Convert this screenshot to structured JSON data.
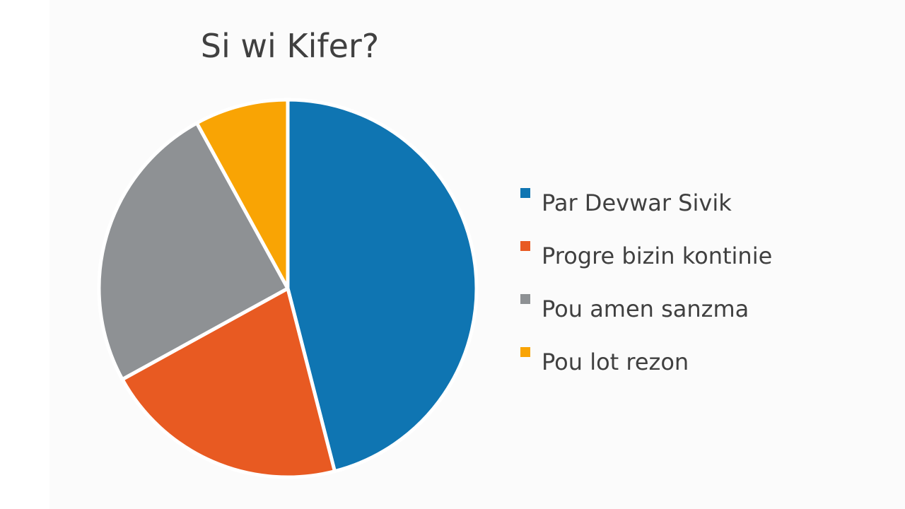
{
  "chart_data": {
    "type": "pie",
    "title": "Si wi Kifer?",
    "slices": [
      {
        "label": "Par Devwar Sivik",
        "value": 46,
        "color": "#0f75b2"
      },
      {
        "label": "Progre bizin kontinie",
        "value": 21,
        "color": "#e85a22"
      },
      {
        "label": "Pou amen sanzma",
        "value": 25,
        "color": "#8e9194"
      },
      {
        "label": "Pou lot rezon",
        "value": 8,
        "color": "#f9a404"
      }
    ],
    "legend_position": "right",
    "start_angle": "top, clockwise"
  }
}
